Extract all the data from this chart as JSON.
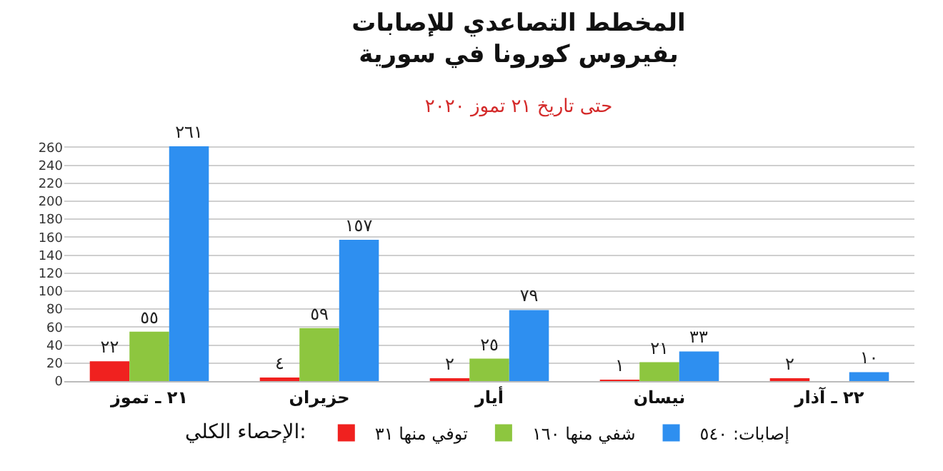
{
  "chart_data": {
    "type": "bar",
    "title": "المخطط التصاعدي للإصابات\nبفيروس كورونا في سورية",
    "subtitle": "حتى تاريخ ٢١ تموز ٢٠٢٠",
    "categories": [
      "٢١ ـ تموز",
      "حزيران",
      "أيار",
      "نيسان",
      "٢٢ ـ آذار"
    ],
    "series": [
      {
        "name": "توفي منها ٣١",
        "color": "#f0211f",
        "values": [
          22,
          4,
          2,
          1,
          2
        ],
        "value_labels": [
          "٢٢",
          "٤",
          "٢",
          "١",
          "٢"
        ]
      },
      {
        "name": "شفي منها ١٦٠",
        "color": "#8dc63f",
        "values": [
          55,
          59,
          25,
          21,
          null
        ],
        "value_labels": [
          "٥٥",
          "٥٩",
          "٢٥",
          "٢١",
          null
        ]
      },
      {
        "name": "إصابات: ٥٤٠",
        "color": "#2e8ff0",
        "values": [
          261,
          157,
          79,
          33,
          10
        ],
        "value_labels": [
          "٢٦١",
          "١٥٧",
          "٧٩",
          "٣٣",
          "١٠"
        ]
      }
    ],
    "legend_title": "الإحصاء الكلي:",
    "legend": "bottom",
    "ylim": [
      0,
      265
    ],
    "yticks": [
      0,
      20,
      40,
      60,
      80,
      100,
      120,
      140,
      160,
      180,
      200,
      220,
      240,
      260
    ],
    "grid": "y"
  }
}
